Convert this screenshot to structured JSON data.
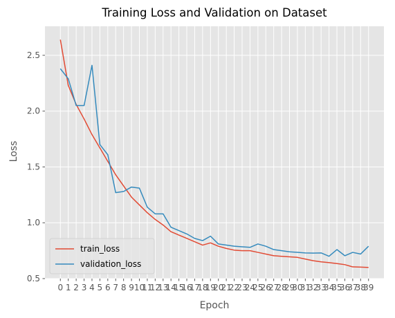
{
  "chart_data": {
    "type": "line",
    "title": "Training Loss and Validation on Dataset",
    "xlabel": "Epoch",
    "ylabel": "Loss",
    "xlim": [
      -1.95,
      40.95
    ],
    "ylim": [
      0.5,
      2.76
    ],
    "x": [
      0,
      1,
      2,
      3,
      4,
      5,
      6,
      7,
      8,
      9,
      10,
      11,
      12,
      13,
      14,
      15,
      16,
      17,
      18,
      19,
      20,
      21,
      22,
      23,
      24,
      25,
      26,
      27,
      28,
      29,
      30,
      31,
      32,
      33,
      34,
      35,
      36,
      37,
      38,
      39
    ],
    "x_ticks": [
      "0",
      "1",
      "2",
      "3",
      "4",
      "5",
      "6",
      "7",
      "8",
      "9",
      "10",
      "11",
      "12",
      "13",
      "14",
      "15",
      "16",
      "17",
      "18",
      "19",
      "20",
      "21",
      "22",
      "23",
      "24",
      "25",
      "26",
      "27",
      "28",
      "29",
      "30",
      "31",
      "32",
      "33",
      "34",
      "35",
      "36",
      "37",
      "38",
      "39"
    ],
    "y_ticks": [
      0.5,
      1.0,
      1.5,
      2.0,
      2.5
    ],
    "y_tick_labels": [
      "0.5",
      "1.0",
      "1.5",
      "2.0",
      "2.5"
    ],
    "grid": true,
    "style": "ggplot",
    "legend_position": "lower-left",
    "series": [
      {
        "name": "train_loss",
        "color": "#E24A33",
        "values": [
          2.64,
          2.23,
          2.06,
          1.93,
          1.79,
          1.67,
          1.55,
          1.43,
          1.33,
          1.23,
          1.16,
          1.09,
          1.03,
          0.98,
          0.92,
          0.89,
          0.86,
          0.83,
          0.8,
          0.82,
          0.79,
          0.77,
          0.755,
          0.75,
          0.75,
          0.735,
          0.72,
          0.705,
          0.7,
          0.695,
          0.69,
          0.675,
          0.66,
          0.65,
          0.643,
          0.635,
          0.625,
          0.605,
          0.603,
          0.6
        ]
      },
      {
        "name": "validation_loss",
        "color": "#348ABD",
        "values": [
          2.38,
          2.29,
          2.05,
          2.05,
          2.41,
          1.7,
          1.61,
          1.27,
          1.28,
          1.32,
          1.31,
          1.14,
          1.08,
          1.08,
          0.96,
          0.93,
          0.9,
          0.86,
          0.84,
          0.88,
          0.81,
          0.8,
          0.79,
          0.785,
          0.78,
          0.81,
          0.79,
          0.76,
          0.75,
          0.74,
          0.735,
          0.73,
          0.728,
          0.73,
          0.7,
          0.76,
          0.705,
          0.735,
          0.72,
          0.79
        ]
      }
    ]
  }
}
